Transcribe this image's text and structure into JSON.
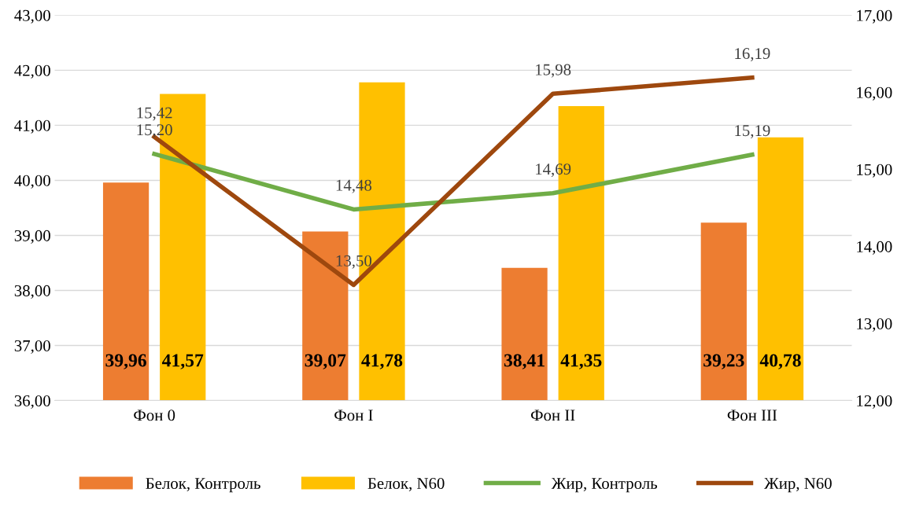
{
  "chart_data": {
    "type": "bar",
    "categories": [
      "Фон 0",
      "Фон I",
      "Фон II",
      "Фон III"
    ],
    "series": [
      {
        "name": "Белок, Контроль",
        "color": "#ed7d31",
        "values": [
          39.96,
          39.07,
          38.41,
          39.23
        ],
        "value_labels": [
          "39,96",
          "39,07",
          "38,41",
          "39,23"
        ]
      },
      {
        "name": "Белок, N60",
        "color": "#ffc000",
        "values": [
          41.57,
          41.78,
          41.35,
          40.78
        ],
        "value_labels": [
          "41,57",
          "41,78",
          "41,35",
          "40,78"
        ]
      },
      {
        "name": "Жир, Контроль",
        "type": "line",
        "axis": "y2",
        "color": "#70ad47",
        "values": [
          15.2,
          14.48,
          14.69,
          15.19
        ],
        "value_labels": [
          "15,20",
          "14,48",
          "14,69",
          "15,19"
        ]
      },
      {
        "name": "Жир, N60",
        "type": "line",
        "axis": "y2",
        "color": "#9e480e",
        "values": [
          15.42,
          13.5,
          15.98,
          16.19
        ],
        "value_labels": [
          "15,42",
          "13,50",
          "15,98",
          "16,19"
        ]
      }
    ],
    "ylim": [
      36,
      43
    ],
    "yticks": [
      {
        "value": 36,
        "label": "36,00"
      },
      {
        "value": 37,
        "label": "37,00"
      },
      {
        "value": 38,
        "label": "38,00"
      },
      {
        "value": 39,
        "label": "39,00"
      },
      {
        "value": 40,
        "label": "40,00"
      },
      {
        "value": 41,
        "label": "41,00"
      },
      {
        "value": 42,
        "label": "42,00"
      },
      {
        "value": 43,
        "label": "43,00"
      }
    ],
    "y2lim": [
      12,
      17
    ],
    "y2ticks": [
      {
        "value": 12,
        "label": "12,00"
      },
      {
        "value": 13,
        "label": "13,00"
      },
      {
        "value": 14,
        "label": "14,00"
      },
      {
        "value": 15,
        "label": "15,00"
      },
      {
        "value": 16,
        "label": "16,00"
      },
      {
        "value": 17,
        "label": "17,00"
      }
    ],
    "grid": "y",
    "legend": "bottom",
    "marker": "none",
    "line_style": "solid"
  }
}
